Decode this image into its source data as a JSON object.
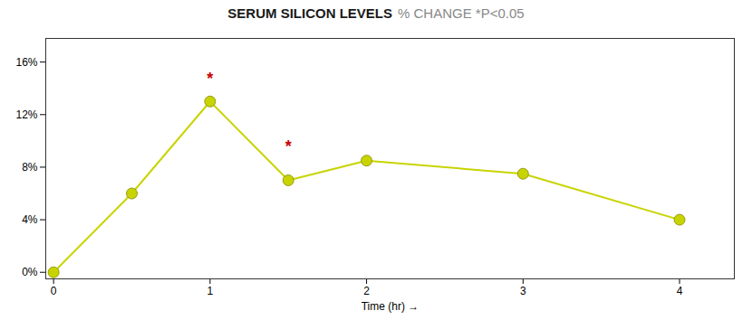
{
  "chart_data": {
    "type": "line",
    "title": "SERUM SILICON LEVELS",
    "subtitle": "% CHANGE *P<0.05",
    "x_label": "Time (hr)",
    "x": [
      0,
      0.5,
      1.0,
      1.5,
      2.0,
      3.0,
      4.0
    ],
    "values": [
      0,
      0.06,
      0.13,
      0.07,
      0.085,
      0.075,
      0.04
    ],
    "color": "#c8d400",
    "marker": "circle",
    "xlim": [
      -0.05,
      4.35
    ],
    "xticks": [
      0,
      1,
      2,
      3,
      4
    ],
    "ylim": [
      -0.005,
      0.178
    ],
    "yticks": [
      {
        "value": 0,
        "label": "0%"
      },
      {
        "value": 0.04,
        "label": "4%"
      },
      {
        "value": 0.08,
        "label": "8%"
      },
      {
        "value": 0.12,
        "label": "12%"
      },
      {
        "value": 0.16,
        "label": "16%"
      }
    ],
    "grid": false,
    "annotations": [
      {
        "x": 1.0,
        "y": 0.143,
        "text": "*",
        "color": "#cc0000"
      },
      {
        "x": 1.5,
        "y": 0.092,
        "text": "*",
        "color": "#cc0000"
      }
    ]
  }
}
